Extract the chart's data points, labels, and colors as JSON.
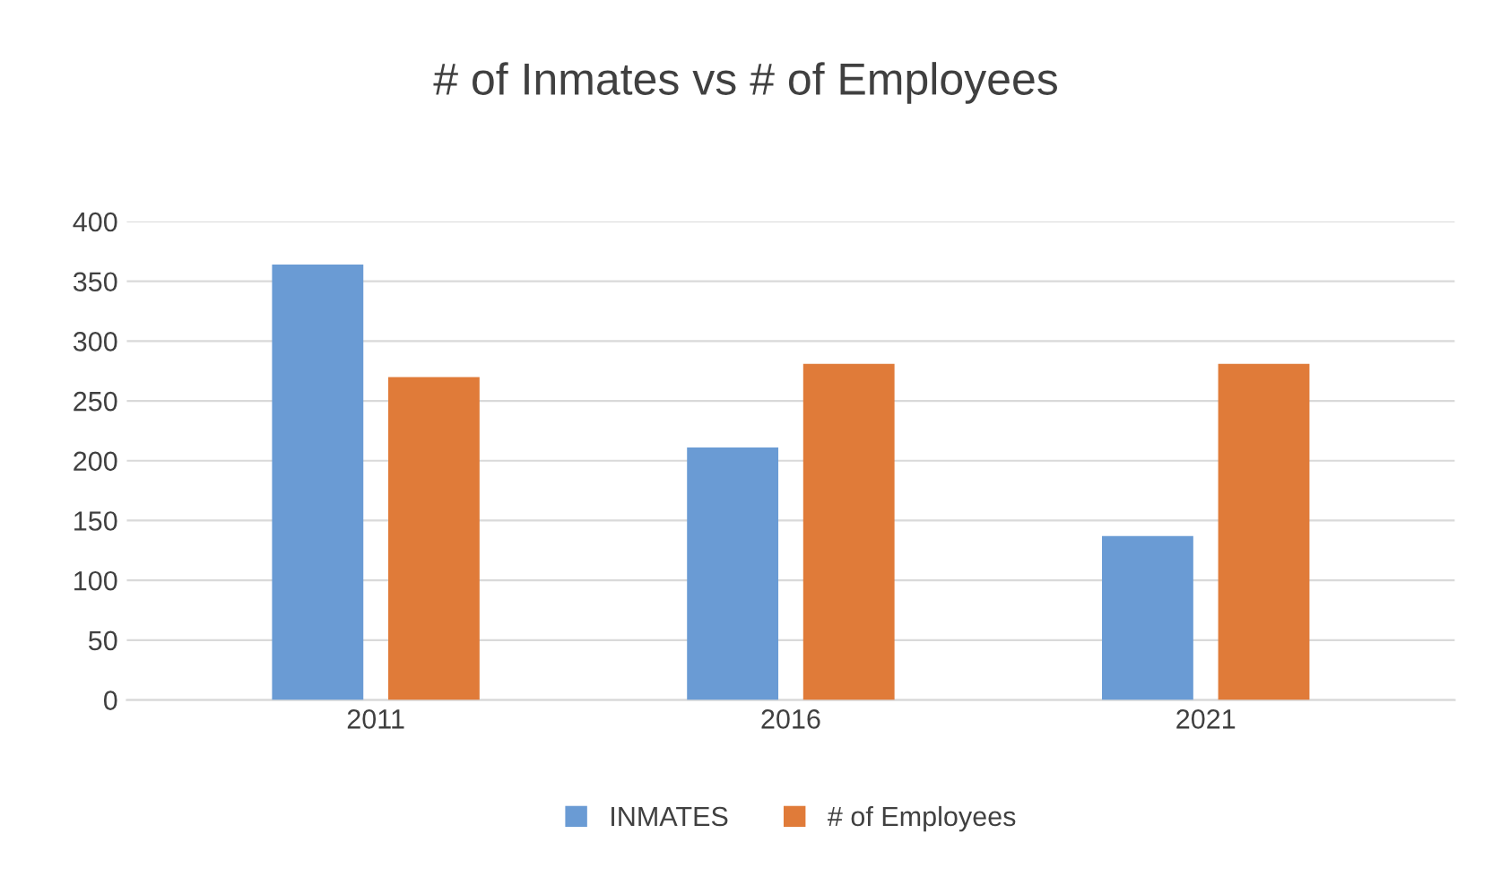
{
  "chart_data": {
    "type": "bar",
    "title": "# of Inmates vs # of Employees",
    "categories": [
      "2011",
      "2016",
      "2021"
    ],
    "series": [
      {
        "name": "INMATES",
        "color": "#6a9bd4",
        "values": [
          364,
          211,
          137
        ]
      },
      {
        "name": "# of Employees",
        "color": "#e07b39",
        "values": [
          270,
          281,
          281
        ]
      }
    ],
    "ylim": [
      0,
      400
    ],
    "yticks": [
      0,
      50,
      100,
      150,
      200,
      250,
      300,
      350,
      400
    ],
    "grid": "y",
    "legend": "bottom"
  }
}
